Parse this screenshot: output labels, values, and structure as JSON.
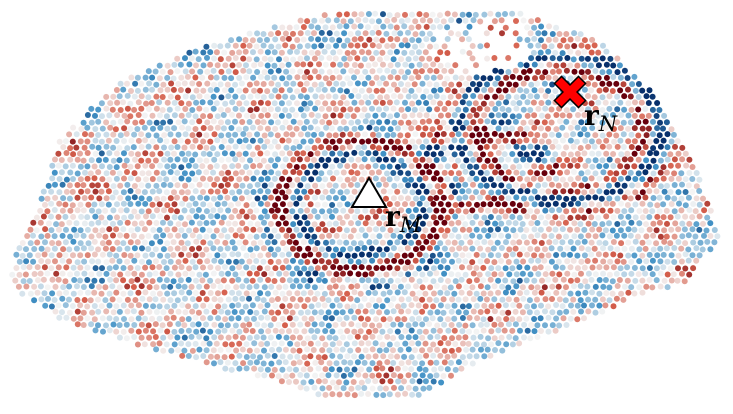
{
  "markers": {
    "triangle": {
      "label": "r",
      "subscript": "M",
      "icon": "triangle-outline-icon"
    },
    "cross": {
      "label": "r",
      "subscript": "N",
      "icon": "red-x-icon",
      "color": "#ff0000"
    }
  },
  "colormap": {
    "negative": "#08306b",
    "neutral": "#f4f4f4",
    "positive": "#67000d"
  }
}
